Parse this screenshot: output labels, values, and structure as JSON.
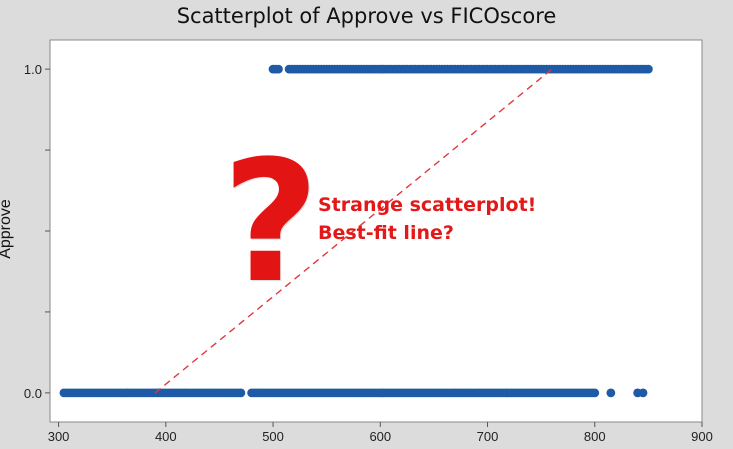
{
  "colors": {
    "page_background": "#dcdcdc",
    "plot_background": "#ffffff",
    "point": "#1f5aa6",
    "fit_line": "#e0393e",
    "annotation": "#e31919"
  },
  "chart_data": {
    "type": "scatter",
    "title": "Scatterplot of Approve vs FICOscore",
    "xlabel": "",
    "ylabel": "Approve",
    "xlim": [
      292,
      900
    ],
    "ylim": [
      -0.09,
      1.09
    ],
    "xticks": [
      300,
      400,
      500,
      600,
      700,
      800,
      900
    ],
    "yticks": [
      0.0,
      1.0
    ],
    "ytick_labels": [
      "0.0",
      "1.0"
    ],
    "grid": false,
    "legend": "none",
    "series": [
      {
        "y": 1.0,
        "x_ranges": [
          [
            500,
            507
          ],
          [
            515,
            850
          ]
        ]
      },
      {
        "y": 0.0,
        "x_ranges": [
          [
            305,
            470
          ],
          [
            480,
            800
          ]
        ],
        "x_points": [
          815,
          840,
          845
        ]
      }
    ],
    "fit_line": {
      "x": [
        390,
        760
      ],
      "y": [
        0.0,
        1.0
      ],
      "style": "dashed"
    },
    "annotations": {
      "question_mark": "?",
      "line1": "Strange scatterplot!",
      "line2": "Best-fit line?"
    }
  }
}
